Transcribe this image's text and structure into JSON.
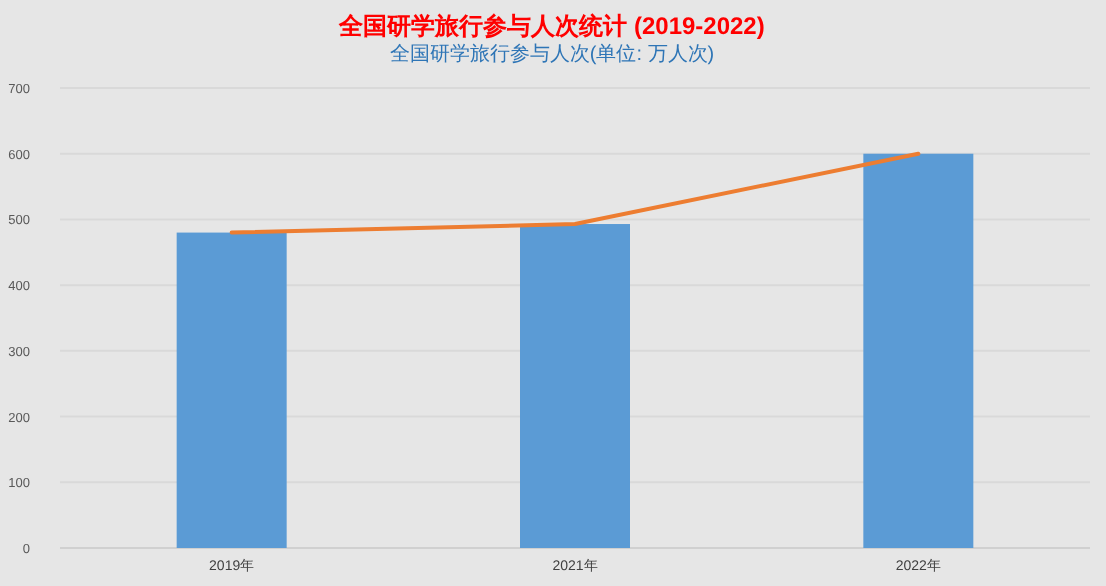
{
  "chart_data": {
    "type": "bar",
    "title": "全国研学旅行参与人次统计 (2019-2022)",
    "subtitle": "全国研学旅行参与人次(单位: 万人次)",
    "categories": [
      "2019年",
      "2021年",
      "2022年"
    ],
    "series": [
      {
        "color": "#5b9bd5",
        "values": [
          480,
          493,
          600
        ]
      },
      {
        "type": "line",
        "color": "#ed7d31",
        "values": [
          480,
          493,
          600
        ],
        "marker": "none"
      }
    ],
    "ylim": [
      0,
      700
    ],
    "yticks": [
      0,
      100,
      200,
      300,
      400,
      500,
      600,
      700
    ],
    "grid": "y"
  }
}
